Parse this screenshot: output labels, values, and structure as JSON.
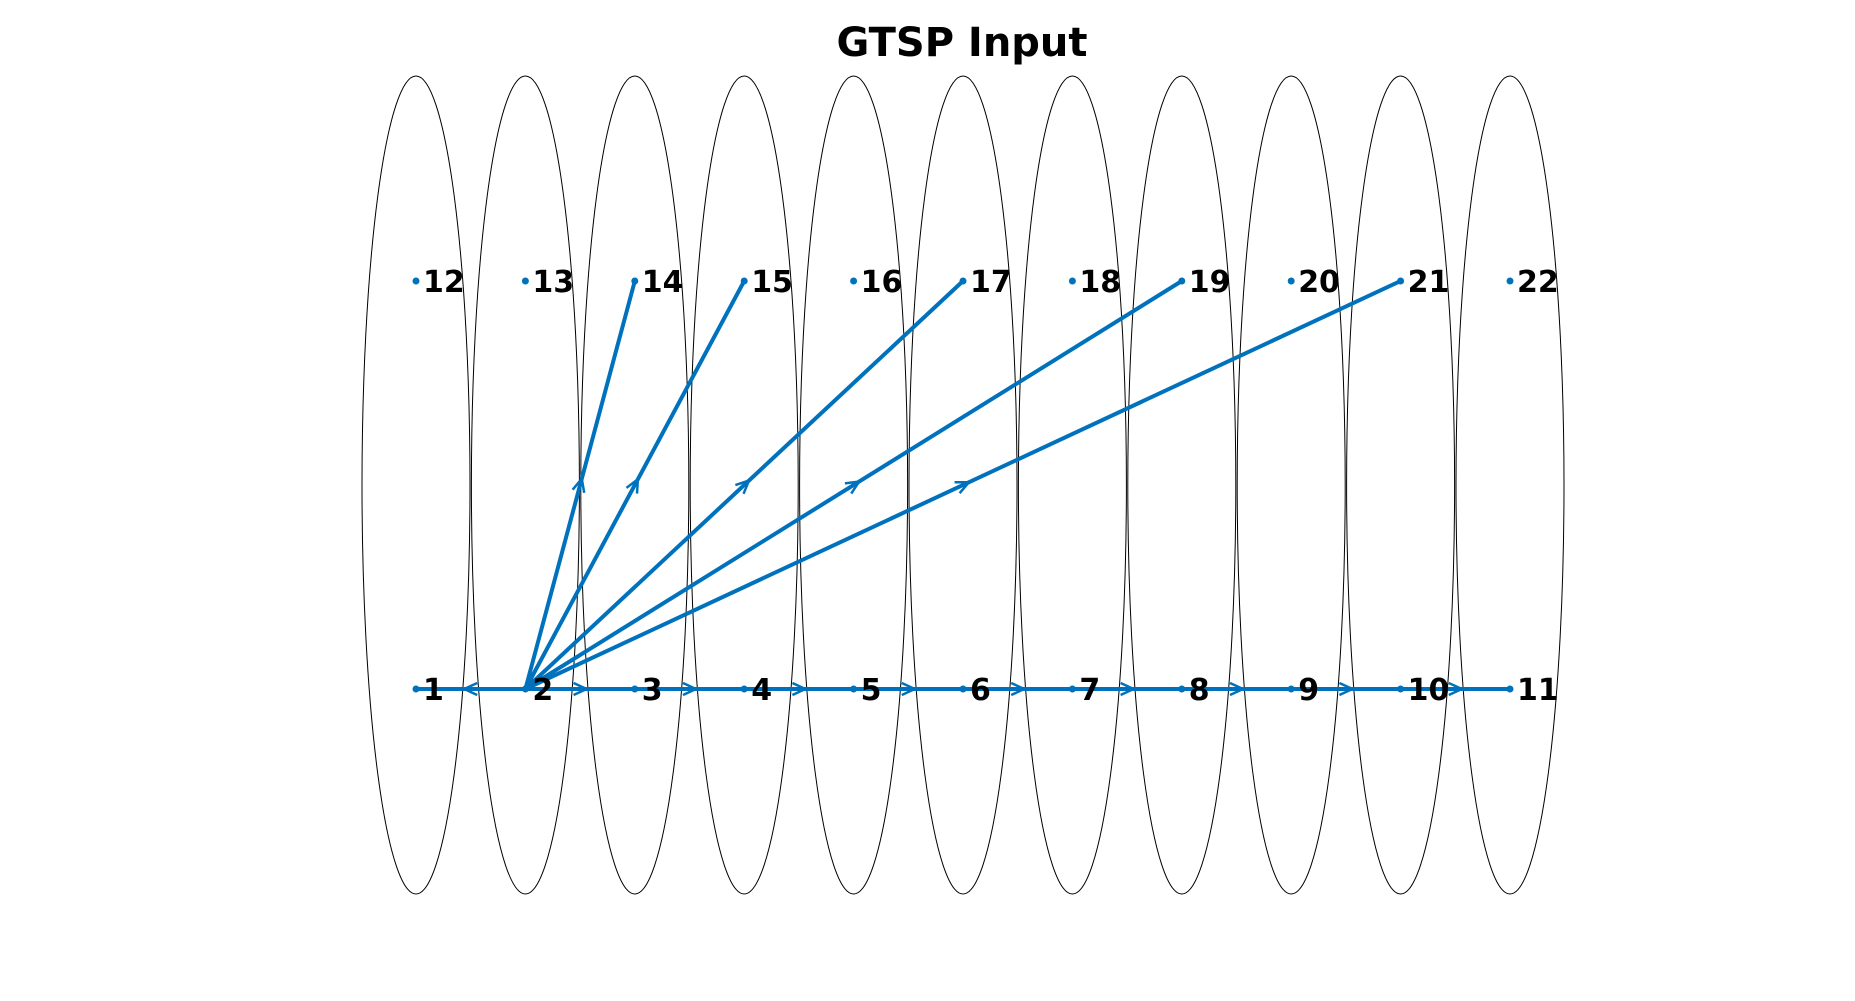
{
  "title": "GTSP Input",
  "colors": {
    "edge": "#0072BD",
    "node": "#0072BD",
    "cluster": "#000000",
    "text": "#000000"
  },
  "clusters": [
    {
      "id": 1,
      "nodes": [
        1,
        12
      ]
    },
    {
      "id": 2,
      "nodes": [
        2,
        13
      ]
    },
    {
      "id": 3,
      "nodes": [
        3,
        14
      ]
    },
    {
      "id": 4,
      "nodes": [
        4,
        15
      ]
    },
    {
      "id": 5,
      "nodes": [
        5,
        16
      ]
    },
    {
      "id": 6,
      "nodes": [
        6,
        17
      ]
    },
    {
      "id": 7,
      "nodes": [
        7,
        18
      ]
    },
    {
      "id": 8,
      "nodes": [
        8,
        19
      ]
    },
    {
      "id": 9,
      "nodes": [
        9,
        20
      ]
    },
    {
      "id": 10,
      "nodes": [
        10,
        21
      ]
    },
    {
      "id": 11,
      "nodes": [
        11,
        22
      ]
    }
  ],
  "nodes": [
    {
      "id": 1,
      "label": "1",
      "cluster": 1,
      "row": "bottom"
    },
    {
      "id": 2,
      "label": "2",
      "cluster": 2,
      "row": "bottom"
    },
    {
      "id": 3,
      "label": "3",
      "cluster": 3,
      "row": "bottom"
    },
    {
      "id": 4,
      "label": "4",
      "cluster": 4,
      "row": "bottom"
    },
    {
      "id": 5,
      "label": "5",
      "cluster": 5,
      "row": "bottom"
    },
    {
      "id": 6,
      "label": "6",
      "cluster": 6,
      "row": "bottom"
    },
    {
      "id": 7,
      "label": "7",
      "cluster": 7,
      "row": "bottom"
    },
    {
      "id": 8,
      "label": "8",
      "cluster": 8,
      "row": "bottom"
    },
    {
      "id": 9,
      "label": "9",
      "cluster": 9,
      "row": "bottom"
    },
    {
      "id": 10,
      "label": "10",
      "cluster": 10,
      "row": "bottom"
    },
    {
      "id": 11,
      "label": "11",
      "cluster": 11,
      "row": "bottom"
    },
    {
      "id": 12,
      "label": "12",
      "cluster": 1,
      "row": "top"
    },
    {
      "id": 13,
      "label": "13",
      "cluster": 2,
      "row": "top"
    },
    {
      "id": 14,
      "label": "14",
      "cluster": 3,
      "row": "top"
    },
    {
      "id": 15,
      "label": "15",
      "cluster": 4,
      "row": "top"
    },
    {
      "id": 16,
      "label": "16",
      "cluster": 5,
      "row": "top"
    },
    {
      "id": 17,
      "label": "17",
      "cluster": 6,
      "row": "top"
    },
    {
      "id": 18,
      "label": "18",
      "cluster": 7,
      "row": "top"
    },
    {
      "id": 19,
      "label": "19",
      "cluster": 8,
      "row": "top"
    },
    {
      "id": 20,
      "label": "20",
      "cluster": 9,
      "row": "top"
    },
    {
      "id": 21,
      "label": "21",
      "cluster": 10,
      "row": "top"
    },
    {
      "id": 22,
      "label": "22",
      "cluster": 11,
      "row": "top"
    }
  ],
  "edges": [
    {
      "from": 2,
      "to": 1
    },
    {
      "from": 2,
      "to": 3
    },
    {
      "from": 3,
      "to": 4
    },
    {
      "from": 4,
      "to": 5
    },
    {
      "from": 5,
      "to": 6
    },
    {
      "from": 6,
      "to": 7
    },
    {
      "from": 7,
      "to": 8
    },
    {
      "from": 8,
      "to": 9
    },
    {
      "from": 9,
      "to": 10
    },
    {
      "from": 10,
      "to": 11
    },
    {
      "from": 2,
      "to": 14
    },
    {
      "from": 2,
      "to": 15
    },
    {
      "from": 2,
      "to": 17
    },
    {
      "from": 2,
      "to": 19
    },
    {
      "from": 2,
      "to": 21
    }
  ]
}
